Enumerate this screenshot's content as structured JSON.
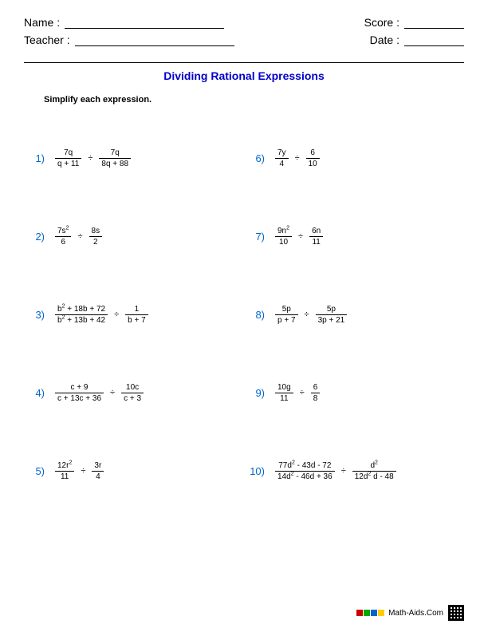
{
  "header": {
    "name_label": "Name :",
    "teacher_label": "Teacher :",
    "score_label": "Score :",
    "date_label": "Date :"
  },
  "title": {
    "text": "Dividing Rational Expressions",
    "color": "#0000cc"
  },
  "instruction": "Simplify each expression.",
  "number_color": "#0066cc",
  "problems_left": [
    {
      "n": "1)",
      "a_num": "7q",
      "a_den": "q + 11",
      "b_num": "7q",
      "b_den": "8q + 88"
    },
    {
      "n": "2)",
      "a_num": "7s²",
      "a_den": "6",
      "b_num": "8s",
      "b_den": "2"
    },
    {
      "n": "3)",
      "a_num": "b² + 18b + 72",
      "a_den": "b² + 13b + 42",
      "b_num": "1",
      "b_den": "b + 7"
    },
    {
      "n": "4)",
      "a_num": "c + 9",
      "a_den": "c + 13c + 36",
      "b_num": "10c",
      "b_den": "c + 3"
    },
    {
      "n": "5)",
      "a_num": "12r²",
      "a_den": "11",
      "b_num": "3r",
      "b_den": "4"
    }
  ],
  "problems_right": [
    {
      "n": "6)",
      "a_num": "7y",
      "a_den": "4",
      "b_num": "6",
      "b_den": "10"
    },
    {
      "n": "7)",
      "a_num": "9n²",
      "a_den": "10",
      "b_num": "6n",
      "b_den": "11"
    },
    {
      "n": "8)",
      "a_num": "5p",
      "a_den": "p + 7",
      "b_num": "5p",
      "b_den": "3p + 21"
    },
    {
      "n": "9)",
      "a_num": "10g",
      "a_den": "11",
      "b_num": "6",
      "b_den": "8"
    },
    {
      "n": "10)",
      "a_num": "77d² - 43d - 72",
      "a_den": "14d² - 46d + 36",
      "b_num": "d²",
      "b_den": "12d² d - 48"
    }
  ],
  "footer": {
    "text": "Math-Aids.Com"
  }
}
